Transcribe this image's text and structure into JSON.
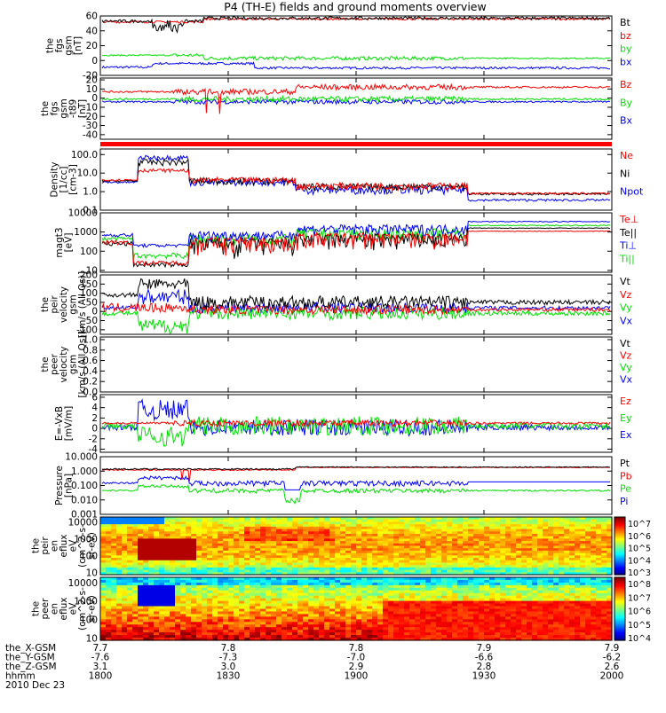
{
  "title": "P4 (TH-E) fields and ground moments overview",
  "colors": {
    "black": "#000000",
    "red": "#ff0000",
    "green": "#00e000",
    "blue": "#0000ff"
  },
  "chart_data": {
    "type": "line",
    "time_axis": {
      "start": "18:00",
      "end": "20:00",
      "rows": [
        {
          "name": "the_X-GSM",
          "values": [
            "7.7",
            "7.8",
            "7.8",
            "7.9",
            "7.9"
          ]
        },
        {
          "name": "the_Y-GSM",
          "values": [
            "-7.6",
            "-7.3",
            "-7.0",
            "-6.6",
            "-6.2"
          ]
        },
        {
          "name": "the_Z-GSM",
          "values": [
            "3.1",
            "3.0",
            "2.9",
            "2.8",
            "2.6"
          ]
        },
        {
          "name": "hhmm",
          "values": [
            "1800",
            "1830",
            "1900",
            "1930",
            "2000"
          ]
        }
      ],
      "date": "2010 Dec 23"
    },
    "panels": [
      {
        "ylabel": [
          "the",
          "fgs",
          "gsm",
          "[nT]"
        ],
        "scale": "linear",
        "ylim": [
          -20,
          60
        ],
        "ticks": [
          "60",
          "40",
          "20",
          "0",
          "-20"
        ],
        "legend": [
          {
            "name": "Bt",
            "color": "black"
          },
          {
            "name": "bz",
            "color": "red"
          },
          {
            "name": "by",
            "color": "green"
          },
          {
            "name": "bx",
            "color": "blue"
          }
        ]
      },
      {
        "ylabel": [
          "the",
          "fgs",
          "gsm",
          "-t89",
          "[nT]"
        ],
        "scale": "linear",
        "ylim": [
          -45,
          22
        ],
        "ticks": [
          "20",
          "10",
          "0",
          "-10",
          "-20",
          "-30",
          "-40"
        ],
        "legend": [
          {
            "name": "Bz",
            "color": "red"
          },
          {
            "name": "By",
            "color": "green"
          },
          {
            "name": "Bx",
            "color": "blue"
          }
        ]
      },
      {
        "ylabel": [
          "Density",
          "[1/cc]",
          "[cm-3]"
        ],
        "scale": "log",
        "ylim": [
          0.1,
          200
        ],
        "ticks": [
          "100.0",
          "10.0",
          "1.0",
          "0.1"
        ],
        "legend": [
          {
            "name": "Ne",
            "color": "red"
          },
          {
            "name": "Ni",
            "color": "black"
          },
          {
            "name": "Npot",
            "color": "blue"
          }
        ]
      },
      {
        "ylabel": [
          "magt3",
          "[eV]"
        ],
        "scale": "log",
        "ylim": [
          8,
          10000
        ],
        "ticks": [
          "10000",
          "1000",
          "100",
          "10"
        ],
        "legend": [
          {
            "name": "Te⊥",
            "color": "red"
          },
          {
            "name": "Te||",
            "color": "black"
          },
          {
            "name": "Ti⊥",
            "color": "blue"
          },
          {
            "name": "Ti||",
            "color": "green"
          }
        ]
      },
      {
        "ylabel": [
          "the",
          "peir",
          "velocity",
          "gsm",
          "[km/s (All Qs)]"
        ],
        "scale": "linear",
        "ylim": [
          -125,
          200
        ],
        "ticks": [
          "200",
          "150",
          "100",
          "50",
          "0",
          "-50",
          "-100"
        ],
        "legend": [
          {
            "name": "Vt",
            "color": "black"
          },
          {
            "name": "Vz",
            "color": "red"
          },
          {
            "name": "Vy",
            "color": "green"
          },
          {
            "name": "Vx",
            "color": "blue"
          }
        ]
      },
      {
        "ylabel": [
          "the",
          "peer",
          "velocity",
          "gsm",
          "[km/s (All Qs)]"
        ],
        "scale": "linear",
        "ylim": [
          0,
          1.05
        ],
        "ticks": [
          "1.0",
          "0.8",
          "0.6",
          "0.4",
          "0.2",
          "0.0"
        ],
        "legend": [
          {
            "name": "Vt",
            "color": "black"
          },
          {
            "name": "Vz",
            "color": "red"
          },
          {
            "name": "Vy",
            "color": "green"
          },
          {
            "name": "Vx",
            "color": "blue"
          }
        ]
      },
      {
        "ylabel": [
          "E=-VxB",
          "[mV/m]"
        ],
        "scale": "linear",
        "ylim": [
          -4.6,
          6.5
        ],
        "ticks": [
          "6",
          "4",
          "2",
          "0",
          "-2",
          "-4"
        ],
        "legend": [
          {
            "name": "Ez",
            "color": "red"
          },
          {
            "name": "Ey",
            "color": "green"
          },
          {
            "name": "Ex",
            "color": "blue"
          }
        ]
      },
      {
        "ylabel": [
          "Pressure",
          "[nPa]"
        ],
        "scale": "log",
        "ylim": [
          0.001,
          10
        ],
        "ticks": [
          "10.000",
          "1.000",
          "0.100",
          "0.010",
          "0.001"
        ],
        "legend": [
          {
            "name": "Pt",
            "color": "black"
          },
          {
            "name": "Pb",
            "color": "red"
          },
          {
            "name": "Pe",
            "color": "green"
          },
          {
            "name": "Pi",
            "color": "blue"
          }
        ]
      },
      {
        "type": "heatmap",
        "ylabel": [
          "the",
          "peir",
          "en",
          "eflux",
          "eV",
          "(cm^2-s-",
          "sr-eV)"
        ],
        "scale": "log",
        "ylim": [
          8,
          20000
        ],
        "ticks": [
          "10000",
          "1000",
          "100",
          "10"
        ],
        "colorbar": [
          "10^7",
          "10^6",
          "10^5",
          "10^4",
          "10^3"
        ]
      },
      {
        "type": "heatmap",
        "ylabel": [
          "the",
          "peer",
          "en",
          "eflux",
          "eV",
          "(cm^2-s-",
          "sr-eV)"
        ],
        "scale": "log",
        "ylim": [
          8,
          20000
        ],
        "ticks": [
          "10000",
          "1000",
          "100",
          "10"
        ],
        "colorbar": [
          "10^8",
          "10^7",
          "10^6",
          "10^5",
          "10^4"
        ]
      }
    ]
  }
}
